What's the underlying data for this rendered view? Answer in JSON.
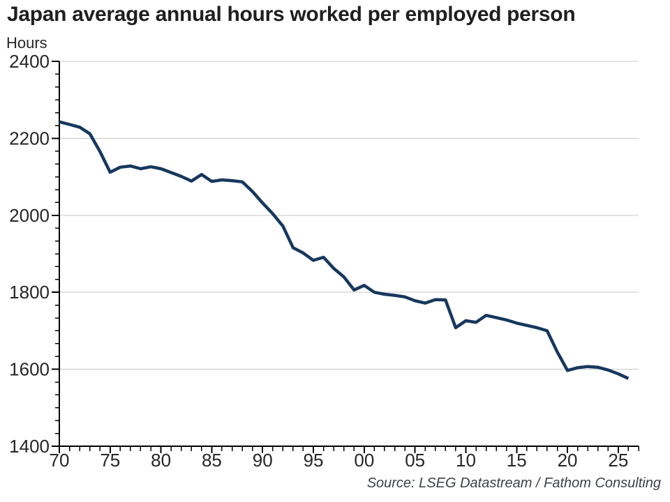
{
  "title": "Japan average annual hours worked per employed person",
  "y_axis_label": "Hours",
  "source": "Source: LSEG Datastream / Fathom Consulting",
  "colors": {
    "line": "#17375d",
    "grid": "#c9c9c9",
    "axis": "#000000",
    "tick_text": "#262626",
    "title_text": "#1f1f1f",
    "source_text": "#3d4147"
  },
  "chart_data": {
    "type": "line",
    "title": "Japan average annual hours worked per employed person",
    "xlabel": "",
    "ylabel": "Hours",
    "legend": "none",
    "grid": "horizontal",
    "xlim": [
      1970,
      2027
    ],
    "ylim": [
      1400,
      2400
    ],
    "yticks": [
      1400,
      1600,
      1800,
      2000,
      2200,
      2400
    ],
    "y_minor_divisions": 6,
    "xtick_years": [
      1970,
      1975,
      1980,
      1985,
      1990,
      1995,
      2000,
      2005,
      2010,
      2015,
      2020,
      2025
    ],
    "xtick_labels": [
      "70",
      "75",
      "80",
      "85",
      "90",
      "95",
      "00",
      "05",
      "10",
      "15",
      "20",
      "25"
    ],
    "series": [
      {
        "name": "Japan average annual hours worked per employed person",
        "x": [
          1970,
          1971,
          1972,
          1973,
          1974,
          1975,
          1976,
          1977,
          1978,
          1979,
          1980,
          1981,
          1982,
          1983,
          1984,
          1985,
          1986,
          1987,
          1988,
          1989,
          1990,
          1991,
          1992,
          1993,
          1994,
          1995,
          1996,
          1997,
          1998,
          1999,
          2000,
          2001,
          2002,
          2003,
          2004,
          2005,
          2006,
          2007,
          2008,
          2009,
          2010,
          2011,
          2012,
          2013,
          2014,
          2015,
          2016,
          2017,
          2018,
          2019,
          2020,
          2021,
          2022,
          2023,
          2024,
          2025,
          2026
        ],
        "values": [
          2243,
          2236,
          2229,
          2212,
          2166,
          2112,
          2125,
          2128,
          2121,
          2126,
          2121,
          2111,
          2101,
          2089,
          2106,
          2088,
          2092,
          2090,
          2087,
          2062,
          2032,
          2004,
          1972,
          1916,
          1902,
          1883,
          1891,
          1862,
          1840,
          1806,
          1818,
          1800,
          1795,
          1792,
          1788,
          1778,
          1772,
          1781,
          1780,
          1708,
          1726,
          1722,
          1740,
          1734,
          1728,
          1720,
          1714,
          1708,
          1700,
          1645,
          1597,
          1604,
          1607,
          1605,
          1598,
          1588,
          1576
        ]
      }
    ]
  }
}
